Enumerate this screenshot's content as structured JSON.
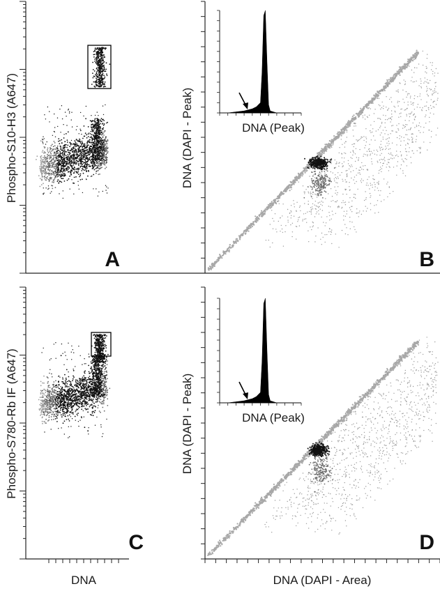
{
  "colors": {
    "axis": "#222222",
    "dense": "#111111",
    "medium": "#6b6b6b",
    "light": "#9a9a9a",
    "diagonal": "#a8a8a8",
    "gate": "#000000"
  },
  "chart_data": [
    {
      "panel": "A",
      "type": "scatter",
      "xlabel": "",
      "ylabel": "Phospho-S10-H3 (A647)",
      "yscale": "log",
      "ylim": [
        0.1,
        10000
      ],
      "x_ticks": 10,
      "gate": {
        "label": "",
        "xrange": [
          0.85,
          1.05
        ],
        "yrange_log10": [
          2.55,
          3.55
        ]
      },
      "populations": [
        {
          "name": "",
          "description_free": true,
          "x_center": 0.6,
          "y_log10_range": [
            0.0,
            1.2
          ],
          "density": "high"
        },
        {
          "name": "",
          "x_center": 0.92,
          "y_log10_range": [
            2.6,
            3.5
          ],
          "density": "high"
        }
      ]
    },
    {
      "panel": "B",
      "type": "scatter",
      "xlabel": "",
      "ylabel": "DNA (DAPI - Peak)",
      "xlim": [
        0,
        1
      ],
      "ylim": [
        0,
        1
      ],
      "inset": {
        "type": "area",
        "xlabel": "DNA (Peak)",
        "x": [
          0.0,
          0.1,
          0.2,
          0.3,
          0.35,
          0.4,
          0.45,
          0.5,
          0.52,
          0.54,
          0.56,
          0.58,
          0.6,
          0.62,
          0.7,
          0.8,
          1.0
        ],
        "y": [
          0,
          0,
          0.01,
          0.02,
          0.03,
          0.04,
          0.06,
          0.1,
          0.4,
          0.95,
          1.0,
          0.5,
          0.08,
          0.02,
          0,
          0,
          0
        ],
        "arrow_x": 0.45
      }
    },
    {
      "panel": "C",
      "type": "scatter",
      "xlabel": "DNA",
      "ylabel": "Phospho-S780-Rb IF (A647)",
      "yscale": "log",
      "ylim": [
        0.1,
        10000
      ],
      "x_ticks": 10,
      "gate": {
        "label": "",
        "xrange": [
          0.85,
          1.05
        ],
        "yrange_log10": [
          2.9,
          3.3
        ]
      }
    },
    {
      "panel": "D",
      "type": "scatter",
      "xlabel": "DNA (DAPI - Area)",
      "ylabel": "DNA (DAPI - Peak)",
      "xlim": [
        0,
        1
      ],
      "ylim": [
        0,
        1
      ],
      "inset": {
        "type": "area",
        "xlabel": "DNA (Peak)",
        "x": [
          0.0,
          0.1,
          0.2,
          0.3,
          0.35,
          0.4,
          0.45,
          0.5,
          0.52,
          0.54,
          0.56,
          0.58,
          0.6,
          0.62,
          0.7,
          0.8,
          1.0
        ],
        "y": [
          0,
          0,
          0.01,
          0.02,
          0.03,
          0.04,
          0.06,
          0.1,
          0.4,
          0.95,
          1.0,
          0.5,
          0.08,
          0.02,
          0,
          0,
          0
        ],
        "arrow_x": 0.45
      }
    }
  ],
  "panels": {
    "A": {
      "letter": "A",
      "ylabel": "Phospho-S10-H3 (A647)"
    },
    "B": {
      "letter": "B",
      "ylabel": "DNA (DAPI - Peak)",
      "inset_xlabel": "DNA (Peak)"
    },
    "C": {
      "letter": "C",
      "ylabel": "Phospho-S780-Rb IF (A647)",
      "xlabel": "DNA"
    },
    "D": {
      "letter": "D",
      "ylabel": "DNA (DAPI - Peak)",
      "xlabel": "DNA (DAPI - Area)",
      "inset_xlabel": "DNA (Peak)"
    }
  }
}
